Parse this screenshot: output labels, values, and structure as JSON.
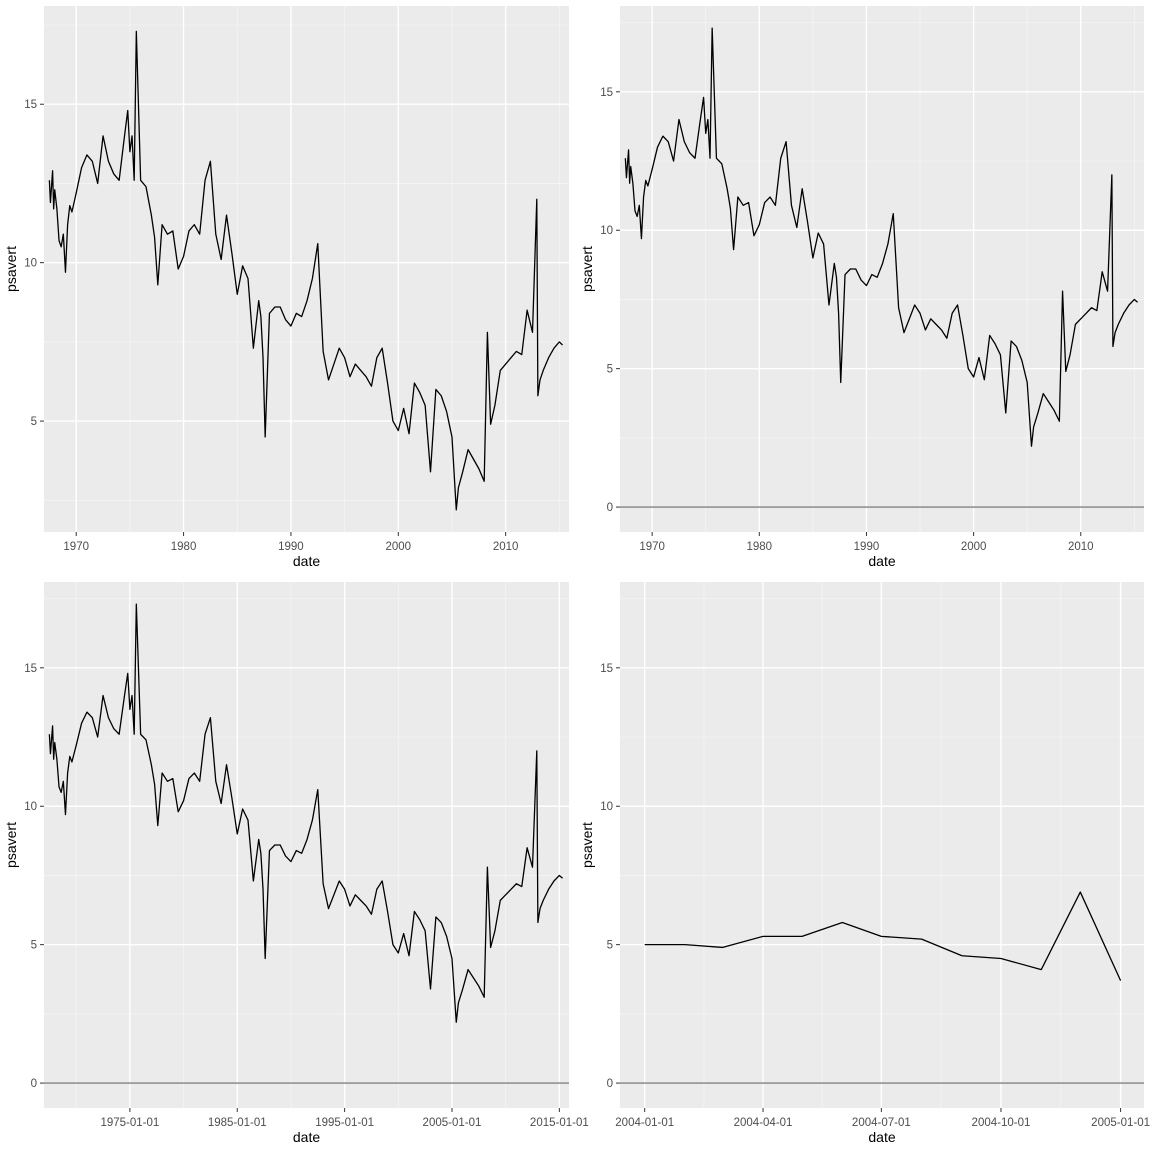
{
  "chart_data": [
    {
      "type": "line",
      "xlabel": "date",
      "ylabel": "psavert",
      "x_tick_labels": [
        "1970",
        "1980",
        "1990",
        "2000",
        "2010"
      ],
      "x_tick_values": [
        1970,
        1980,
        1990,
        2000,
        2010
      ],
      "y_tick_labels": [
        "5",
        "10",
        "15"
      ],
      "y_tick_values": [
        5,
        10,
        15
      ],
      "xlim": [
        1967.0,
        2015.9
      ],
      "ylim": [
        1.5,
        18.1
      ],
      "zero_line": false,
      "grid": true,
      "x_units": "year",
      "x": [
        1967.5,
        1967.6,
        1967.8,
        1967.9,
        1968.0,
        1968.2,
        1968.4,
        1968.6,
        1968.8,
        1969.0,
        1969.2,
        1969.4,
        1969.6,
        1969.8,
        1970.0,
        1970.5,
        1971.0,
        1971.5,
        1972.0,
        1972.5,
        1973.0,
        1973.5,
        1974.0,
        1974.5,
        1974.8,
        1975.0,
        1975.2,
        1975.4,
        1975.6,
        1976.0,
        1976.5,
        1977.0,
        1977.3,
        1977.6,
        1978.0,
        1978.5,
        1979.0,
        1979.5,
        1980.0,
        1980.5,
        1981.0,
        1981.5,
        1982.0,
        1982.5,
        1983.0,
        1983.5,
        1984.0,
        1984.5,
        1985.0,
        1985.5,
        1986.0,
        1986.5,
        1987.0,
        1987.2,
        1987.4,
        1987.6,
        1988.0,
        1988.5,
        1989.0,
        1989.5,
        1990.0,
        1990.5,
        1991.0,
        1991.5,
        1992.0,
        1992.5,
        1993.0,
        1993.5,
        1994.0,
        1994.5,
        1995.0,
        1995.5,
        1996.0,
        1996.5,
        1997.0,
        1997.5,
        1998.0,
        1998.5,
        1999.0,
        1999.5,
        2000.0,
        2000.5,
        2001.0,
        2001.5,
        2002.0,
        2002.5,
        2003.0,
        2003.5,
        2004.0,
        2004.5,
        2005.0,
        2005.4,
        2005.6,
        2006.0,
        2006.5,
        2007.0,
        2007.5,
        2008.0,
        2008.3,
        2008.6,
        2009.0,
        2009.5,
        2010.0,
        2010.5,
        2011.0,
        2011.5,
        2012.0,
        2012.5,
        2012.9,
        2013.0,
        2013.2,
        2013.5,
        2014.0,
        2014.5,
        2015.0,
        2015.3
      ],
      "y": [
        12.6,
        11.9,
        12.9,
        11.7,
        12.3,
        11.7,
        10.7,
        10.5,
        10.9,
        9.7,
        11.2,
        11.8,
        11.6,
        11.9,
        12.2,
        13.0,
        13.4,
        13.2,
        12.5,
        14.0,
        13.2,
        12.8,
        12.6,
        14.0,
        14.8,
        13.5,
        14.0,
        12.6,
        17.3,
        12.6,
        12.4,
        11.5,
        10.8,
        9.3,
        11.2,
        10.9,
        11.0,
        9.8,
        10.2,
        11.0,
        11.2,
        10.9,
        12.6,
        13.2,
        10.9,
        10.1,
        11.5,
        10.3,
        9.0,
        9.9,
        9.5,
        7.3,
        8.8,
        8.3,
        7.0,
        4.5,
        8.4,
        8.6,
        8.6,
        8.2,
        8.0,
        8.4,
        8.3,
        8.8,
        9.5,
        10.6,
        7.2,
        6.3,
        6.8,
        7.3,
        7.0,
        6.4,
        6.8,
        6.6,
        6.4,
        6.1,
        7.0,
        7.3,
        6.2,
        5.0,
        4.7,
        5.4,
        4.6,
        6.2,
        5.9,
        5.5,
        3.4,
        6.0,
        5.8,
        5.3,
        4.5,
        2.2,
        2.9,
        3.4,
        4.1,
        3.8,
        3.5,
        3.1,
        7.8,
        4.9,
        5.5,
        6.6,
        6.8,
        7.0,
        7.2,
        7.1,
        8.5,
        7.8,
        12.0,
        5.8,
        6.3,
        6.6,
        7.0,
        7.3,
        7.5,
        7.4
      ]
    },
    {
      "type": "line",
      "xlabel": "date",
      "ylabel": "psavert",
      "x_tick_labels": [
        "1970",
        "1980",
        "1990",
        "2000",
        "2010"
      ],
      "x_tick_values": [
        1970,
        1980,
        1990,
        2000,
        2010
      ],
      "y_tick_labels": [
        "0",
        "5",
        "10",
        "15"
      ],
      "y_tick_values": [
        0,
        5,
        10,
        15
      ],
      "xlim": [
        1967.0,
        2015.9
      ],
      "ylim": [
        -0.9,
        18.1
      ],
      "zero_line": true,
      "grid": true,
      "x_units": "year",
      "x": [
        1967.5,
        1967.6,
        1967.8,
        1967.9,
        1968.0,
        1968.2,
        1968.4,
        1968.6,
        1968.8,
        1969.0,
        1969.2,
        1969.4,
        1969.6,
        1969.8,
        1970.0,
        1970.5,
        1971.0,
        1971.5,
        1972.0,
        1972.5,
        1973.0,
        1973.5,
        1974.0,
        1974.5,
        1974.8,
        1975.0,
        1975.2,
        1975.4,
        1975.6,
        1976.0,
        1976.5,
        1977.0,
        1977.3,
        1977.6,
        1978.0,
        1978.5,
        1979.0,
        1979.5,
        1980.0,
        1980.5,
        1981.0,
        1981.5,
        1982.0,
        1982.5,
        1983.0,
        1983.5,
        1984.0,
        1984.5,
        1985.0,
        1985.5,
        1986.0,
        1986.5,
        1987.0,
        1987.2,
        1987.4,
        1987.6,
        1988.0,
        1988.5,
        1989.0,
        1989.5,
        1990.0,
        1990.5,
        1991.0,
        1991.5,
        1992.0,
        1992.5,
        1993.0,
        1993.5,
        1994.0,
        1994.5,
        1995.0,
        1995.5,
        1996.0,
        1996.5,
        1997.0,
        1997.5,
        1998.0,
        1998.5,
        1999.0,
        1999.5,
        2000.0,
        2000.5,
        2001.0,
        2001.5,
        2002.0,
        2002.5,
        2003.0,
        2003.5,
        2004.0,
        2004.5,
        2005.0,
        2005.4,
        2005.6,
        2006.0,
        2006.5,
        2007.0,
        2007.5,
        2008.0,
        2008.3,
        2008.6,
        2009.0,
        2009.5,
        2010.0,
        2010.5,
        2011.0,
        2011.5,
        2012.0,
        2012.5,
        2012.9,
        2013.0,
        2013.2,
        2013.5,
        2014.0,
        2014.5,
        2015.0,
        2015.3
      ],
      "y": [
        12.6,
        11.9,
        12.9,
        11.7,
        12.3,
        11.7,
        10.7,
        10.5,
        10.9,
        9.7,
        11.2,
        11.8,
        11.6,
        11.9,
        12.2,
        13.0,
        13.4,
        13.2,
        12.5,
        14.0,
        13.2,
        12.8,
        12.6,
        14.0,
        14.8,
        13.5,
        14.0,
        12.6,
        17.3,
        12.6,
        12.4,
        11.5,
        10.8,
        9.3,
        11.2,
        10.9,
        11.0,
        9.8,
        10.2,
        11.0,
        11.2,
        10.9,
        12.6,
        13.2,
        10.9,
        10.1,
        11.5,
        10.3,
        9.0,
        9.9,
        9.5,
        7.3,
        8.8,
        8.3,
        7.0,
        4.5,
        8.4,
        8.6,
        8.6,
        8.2,
        8.0,
        8.4,
        8.3,
        8.8,
        9.5,
        10.6,
        7.2,
        6.3,
        6.8,
        7.3,
        7.0,
        6.4,
        6.8,
        6.6,
        6.4,
        6.1,
        7.0,
        7.3,
        6.2,
        5.0,
        4.7,
        5.4,
        4.6,
        6.2,
        5.9,
        5.5,
        3.4,
        6.0,
        5.8,
        5.3,
        4.5,
        2.2,
        2.9,
        3.4,
        4.1,
        3.8,
        3.5,
        3.1,
        7.8,
        4.9,
        5.5,
        6.6,
        6.8,
        7.0,
        7.2,
        7.1,
        8.5,
        7.8,
        12.0,
        5.8,
        6.3,
        6.6,
        7.0,
        7.3,
        7.5,
        7.4
      ]
    },
    {
      "type": "line",
      "xlabel": "date",
      "ylabel": "psavert",
      "x_tick_labels": [
        "1975-01-01",
        "1985-01-01",
        "1995-01-01",
        "2005-01-01",
        "2015-01-01"
      ],
      "x_tick_values": [
        1975.0,
        1985.0,
        1995.0,
        2005.0,
        2015.0
      ],
      "y_tick_labels": [
        "0",
        "5",
        "10",
        "15"
      ],
      "y_tick_values": [
        0,
        5,
        10,
        15
      ],
      "xlim": [
        1967.0,
        2015.9
      ],
      "ylim": [
        -0.9,
        18.1
      ],
      "zero_line": true,
      "grid": true,
      "x_units": "year",
      "x": [
        1967.5,
        1967.6,
        1967.8,
        1967.9,
        1968.0,
        1968.2,
        1968.4,
        1968.6,
        1968.8,
        1969.0,
        1969.2,
        1969.4,
        1969.6,
        1969.8,
        1970.0,
        1970.5,
        1971.0,
        1971.5,
        1972.0,
        1972.5,
        1973.0,
        1973.5,
        1974.0,
        1974.5,
        1974.8,
        1975.0,
        1975.2,
        1975.4,
        1975.6,
        1976.0,
        1976.5,
        1977.0,
        1977.3,
        1977.6,
        1978.0,
        1978.5,
        1979.0,
        1979.5,
        1980.0,
        1980.5,
        1981.0,
        1981.5,
        1982.0,
        1982.5,
        1983.0,
        1983.5,
        1984.0,
        1984.5,
        1985.0,
        1985.5,
        1986.0,
        1986.5,
        1987.0,
        1987.2,
        1987.4,
        1987.6,
        1988.0,
        1988.5,
        1989.0,
        1989.5,
        1990.0,
        1990.5,
        1991.0,
        1991.5,
        1992.0,
        1992.5,
        1993.0,
        1993.5,
        1994.0,
        1994.5,
        1995.0,
        1995.5,
        1996.0,
        1996.5,
        1997.0,
        1997.5,
        1998.0,
        1998.5,
        1999.0,
        1999.5,
        2000.0,
        2000.5,
        2001.0,
        2001.5,
        2002.0,
        2002.5,
        2003.0,
        2003.5,
        2004.0,
        2004.5,
        2005.0,
        2005.4,
        2005.6,
        2006.0,
        2006.5,
        2007.0,
        2007.5,
        2008.0,
        2008.3,
        2008.6,
        2009.0,
        2009.5,
        2010.0,
        2010.5,
        2011.0,
        2011.5,
        2012.0,
        2012.5,
        2012.9,
        2013.0,
        2013.2,
        2013.5,
        2014.0,
        2014.5,
        2015.0,
        2015.3
      ],
      "y": [
        12.6,
        11.9,
        12.9,
        11.7,
        12.3,
        11.7,
        10.7,
        10.5,
        10.9,
        9.7,
        11.2,
        11.8,
        11.6,
        11.9,
        12.2,
        13.0,
        13.4,
        13.2,
        12.5,
        14.0,
        13.2,
        12.8,
        12.6,
        14.0,
        14.8,
        13.5,
        14.0,
        12.6,
        17.3,
        12.6,
        12.4,
        11.5,
        10.8,
        9.3,
        11.2,
        10.9,
        11.0,
        9.8,
        10.2,
        11.0,
        11.2,
        10.9,
        12.6,
        13.2,
        10.9,
        10.1,
        11.5,
        10.3,
        9.0,
        9.9,
        9.5,
        7.3,
        8.8,
        8.3,
        7.0,
        4.5,
        8.4,
        8.6,
        8.6,
        8.2,
        8.0,
        8.4,
        8.3,
        8.8,
        9.5,
        10.6,
        7.2,
        6.3,
        6.8,
        7.3,
        7.0,
        6.4,
        6.8,
        6.6,
        6.4,
        6.1,
        7.0,
        7.3,
        6.2,
        5.0,
        4.7,
        5.4,
        4.6,
        6.2,
        5.9,
        5.5,
        3.4,
        6.0,
        5.8,
        5.3,
        4.5,
        2.2,
        2.9,
        3.4,
        4.1,
        3.8,
        3.5,
        3.1,
        7.8,
        4.9,
        5.5,
        6.6,
        6.8,
        7.0,
        7.2,
        7.1,
        8.5,
        7.8,
        12.0,
        5.8,
        6.3,
        6.6,
        7.0,
        7.3,
        7.5,
        7.4
      ]
    },
    {
      "type": "line",
      "xlabel": "date",
      "ylabel": "psavert",
      "x_tick_labels": [
        "2004-01-01",
        "2004-04-01",
        "2004-07-01",
        "2004-10-01",
        "2005-01-01"
      ],
      "x_tick_values": [
        "2004-01-01",
        "2004-04-01",
        "2004-07-01",
        "2004-10-01",
        "2005-01-01"
      ],
      "y_tick_labels": [
        "0",
        "5",
        "10",
        "15"
      ],
      "y_tick_values": [
        0,
        5,
        10,
        15
      ],
      "xlim": [
        "2003-12-13",
        "2005-01-19"
      ],
      "ylim": [
        -0.9,
        18.1
      ],
      "zero_line": true,
      "grid": true,
      "x_units": "date",
      "x": [
        "2004-01-01",
        "2004-02-01",
        "2004-03-01",
        "2004-04-01",
        "2004-05-01",
        "2004-06-01",
        "2004-07-01",
        "2004-08-01",
        "2004-09-01",
        "2004-10-01",
        "2004-11-01",
        "2004-12-01",
        "2005-01-01"
      ],
      "y": [
        5.0,
        5.0,
        4.9,
        5.3,
        5.3,
        5.8,
        5.3,
        5.2,
        4.6,
        4.5,
        4.1,
        6.9,
        3.7
      ]
    }
  ]
}
